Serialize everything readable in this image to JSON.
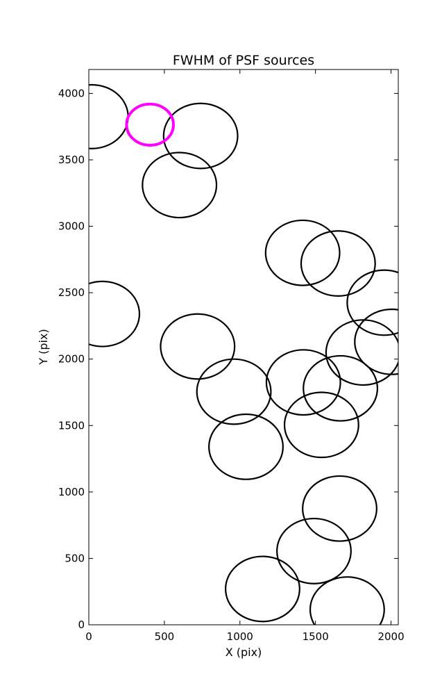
{
  "chart_data": {
    "type": "scatter",
    "title": "FWHM of PSF sources",
    "xlabel": "X (pix)",
    "ylabel": "Y (pix)",
    "xlim": [
      0,
      2048
    ],
    "ylim": [
      0,
      4180
    ],
    "xticks": [
      0,
      500,
      1000,
      1500,
      2000
    ],
    "yticks": [
      0,
      500,
      1000,
      1500,
      2000,
      2500,
      3000,
      3500,
      4000
    ],
    "grid": false,
    "legend": "none",
    "marker": "open-circle",
    "colors": {
      "default": "#000000",
      "highlight": "#ff00ff",
      "axes": "#000000"
    },
    "series": [
      {
        "points": [
          {
            "x": 20,
            "y": 3825,
            "r": 240
          },
          {
            "x": 740,
            "y": 3680,
            "r": 245
          },
          {
            "x": 600,
            "y": 3310,
            "r": 245
          },
          {
            "x": 1415,
            "y": 2800,
            "r": 245
          },
          {
            "x": 1650,
            "y": 2720,
            "r": 245
          },
          {
            "x": 1955,
            "y": 2425,
            "r": 245
          },
          {
            "x": 90,
            "y": 2340,
            "r": 245
          },
          {
            "x": 2005,
            "y": 2130,
            "r": 245
          },
          {
            "x": 720,
            "y": 2095,
            "r": 245
          },
          {
            "x": 1815,
            "y": 2050,
            "r": 245
          },
          {
            "x": 960,
            "y": 1755,
            "r": 245
          },
          {
            "x": 1420,
            "y": 1825,
            "r": 245
          },
          {
            "x": 1665,
            "y": 1780,
            "r": 245
          },
          {
            "x": 1540,
            "y": 1505,
            "r": 245
          },
          {
            "x": 1040,
            "y": 1340,
            "r": 245
          },
          {
            "x": 1660,
            "y": 875,
            "r": 245
          },
          {
            "x": 1490,
            "y": 555,
            "r": 245
          },
          {
            "x": 1150,
            "y": 270,
            "r": 245
          },
          {
            "x": 1710,
            "y": 115,
            "r": 245
          }
        ]
      },
      {
        "highlight": true,
        "points": [
          {
            "x": 405,
            "y": 3765,
            "r": 155
          }
        ]
      }
    ]
  }
}
